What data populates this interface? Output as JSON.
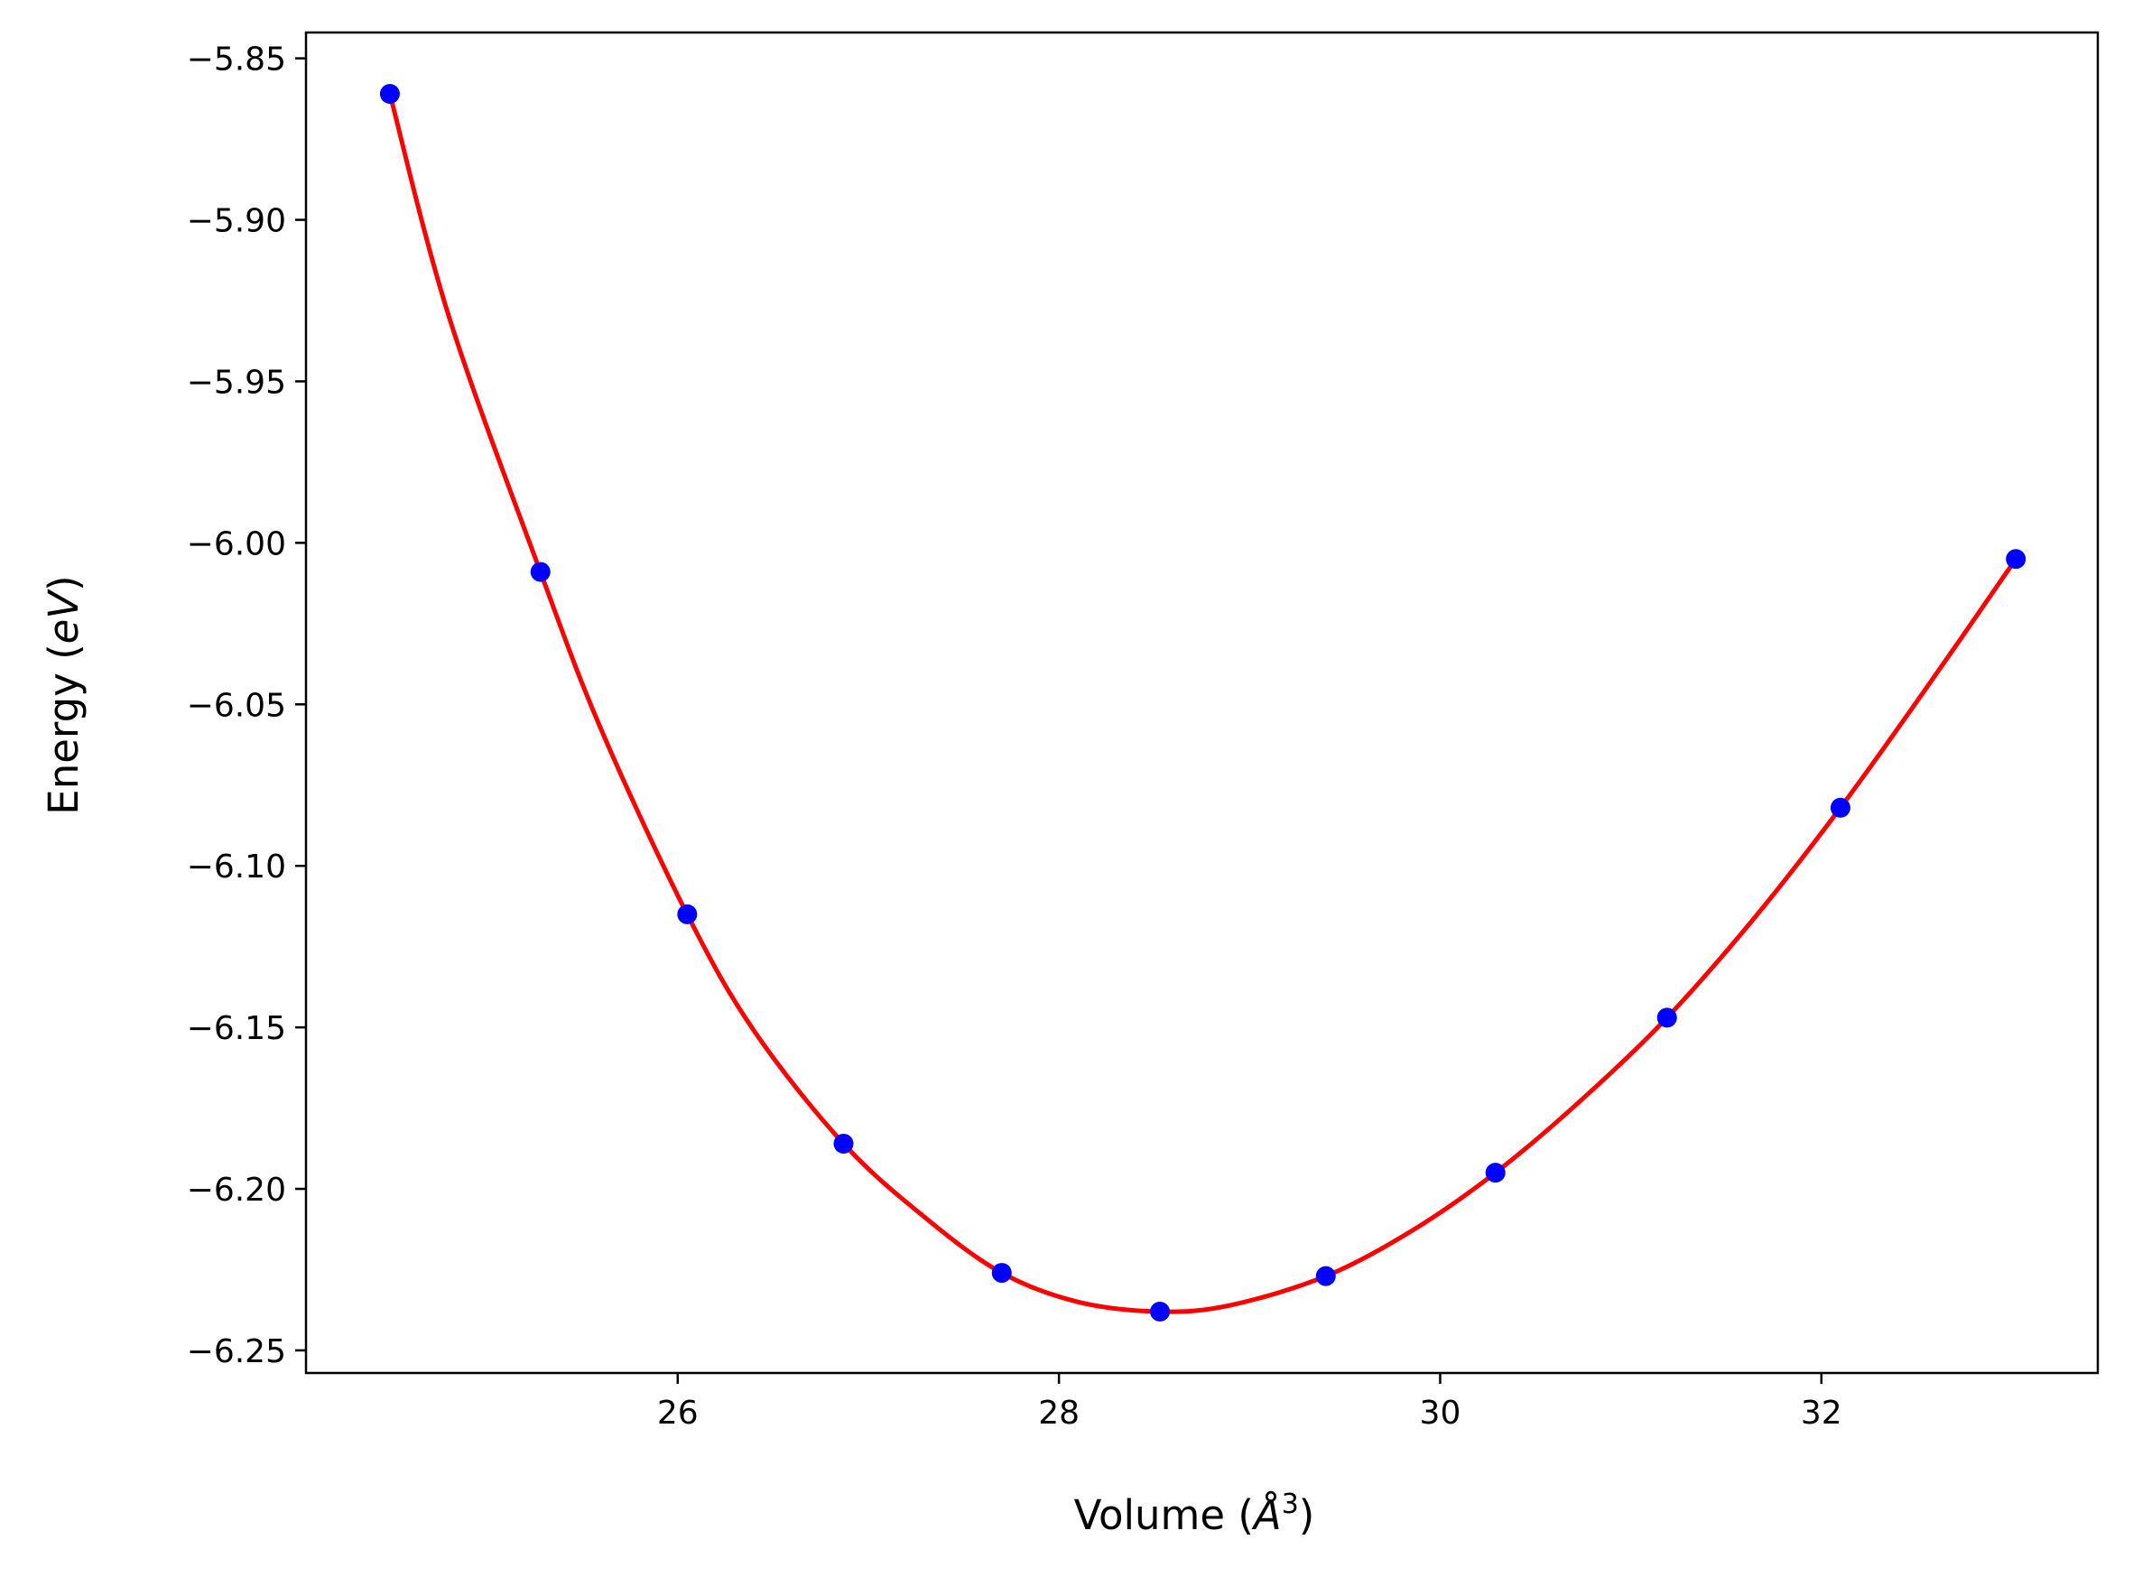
{
  "chart_data": {
    "type": "scatter",
    "title": "",
    "xlabel": "Volume (",
    "xlabel_unit_symbol": "Å",
    "xlabel_unit_exponent": "3",
    "xlabel_close": ")",
    "ylabel": "Energy (",
    "ylabel_unit": "eV",
    "ylabel_close": ")",
    "xlim": [
      24.05,
      33.45
    ],
    "ylim": [
      -6.257,
      -5.842
    ],
    "xticks": [
      26,
      28,
      30,
      32
    ],
    "xtick_labels": [
      "26",
      "28",
      "30",
      "32"
    ],
    "yticks": [
      -5.85,
      -5.9,
      -5.95,
      -6.0,
      -6.05,
      -6.1,
      -6.15,
      -6.2,
      -6.25
    ],
    "ytick_labels": [
      "−5.85",
      "−5.90",
      "−5.95",
      "−6.00",
      "−6.05",
      "−6.10",
      "−6.15",
      "−6.20",
      "−6.25"
    ],
    "grid": false,
    "series": [
      {
        "kind": "points",
        "color": "#0000ff",
        "x": [
          24.49,
          25.28,
          26.05,
          26.87,
          27.7,
          28.53,
          29.4,
          30.29,
          31.19,
          32.1,
          33.02
        ],
        "y": [
          -5.861,
          -6.009,
          -6.115,
          -6.186,
          -6.226,
          -6.238,
          -6.227,
          -6.195,
          -6.147,
          -6.082,
          -6.005
        ]
      },
      {
        "kind": "fit-curve",
        "color": "#ff0000",
        "x": [
          24.49,
          24.8,
          25.28,
          25.6,
          26.05,
          26.4,
          26.87,
          27.3,
          27.7,
          28.1,
          28.53,
          28.9,
          29.4,
          29.85,
          30.29,
          30.75,
          31.19,
          31.65,
          32.1,
          32.55,
          33.02
        ],
        "y": [
          -5.861,
          -5.93,
          -6.009,
          -6.058,
          -6.115,
          -6.151,
          -6.186,
          -6.209,
          -6.226,
          -6.235,
          -6.238,
          -6.236,
          -6.227,
          -6.213,
          -6.195,
          -6.172,
          -6.147,
          -6.116,
          -6.082,
          -6.045,
          -6.005
        ]
      }
    ]
  },
  "colors": {
    "points": "#0000ff",
    "curve": "#ff0000",
    "axes": "#000000"
  }
}
